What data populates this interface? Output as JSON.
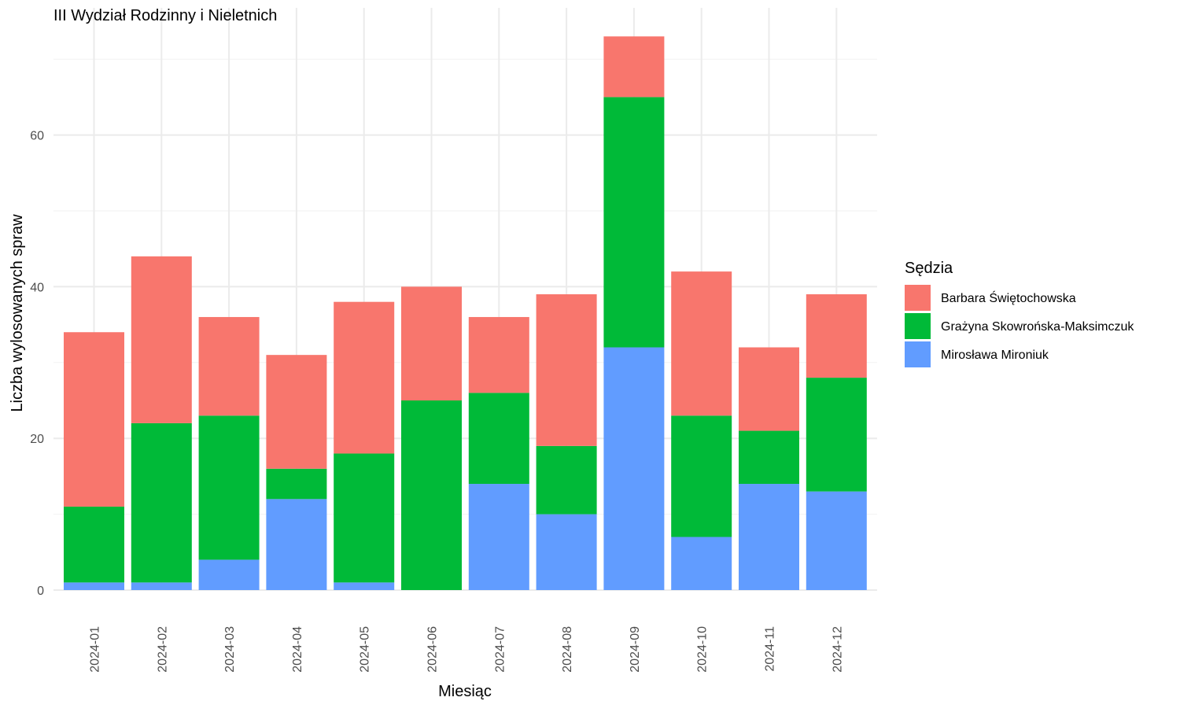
{
  "chart_data": {
    "type": "bar",
    "stacked": true,
    "title": "III Wydział Rodzinny i Nieletnich",
    "xlabel": "Miesiąc",
    "ylabel": "Liczba wylosowanych spraw",
    "ylim": [
      0,
      75
    ],
    "yticks": [
      0,
      20,
      40,
      60
    ],
    "grid": true,
    "legend_position": "right",
    "legend_title": "Sędzia",
    "categories": [
      "2024-01",
      "2024-02",
      "2024-03",
      "2024-04",
      "2024-05",
      "2024-06",
      "2024-07",
      "2024-08",
      "2024-09",
      "2024-10",
      "2024-11",
      "2024-12"
    ],
    "series": [
      {
        "name": "Mirosława Mironiuk",
        "color": "#619CFF",
        "values": [
          1,
          1,
          4,
          12,
          1,
          0,
          14,
          10,
          32,
          7,
          14,
          13
        ]
      },
      {
        "name": "Grażyna Skowrońska-Maksimczuk",
        "color": "#00BA38",
        "values": [
          10,
          21,
          19,
          4,
          17,
          25,
          12,
          9,
          33,
          16,
          7,
          15
        ]
      },
      {
        "name": "Barbara Świętochowska",
        "color": "#F8766D",
        "values": [
          23,
          22,
          13,
          15,
          20,
          15,
          10,
          20,
          8,
          19,
          11,
          11
        ]
      }
    ],
    "legend_order": [
      "Barbara Świętochowska",
      "Grażyna Skowrońska-Maksimczuk",
      "Mirosława Mironiuk"
    ]
  }
}
